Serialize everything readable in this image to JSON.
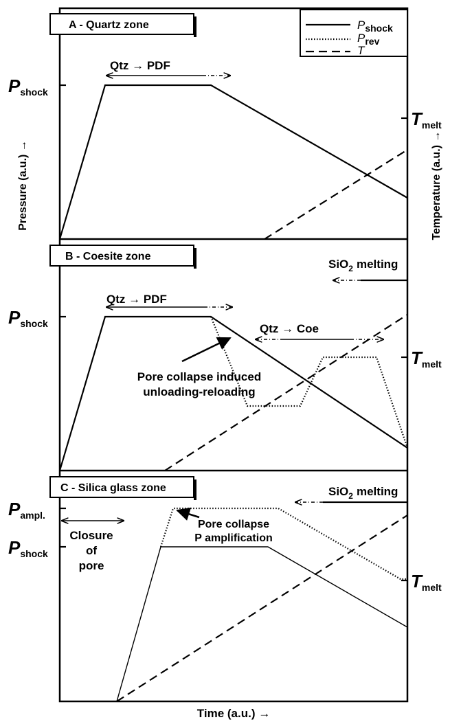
{
  "panels": [
    {
      "label": "A - Quartz zone",
      "p_shock": {
        "main": "P",
        "sub": "shock"
      },
      "t_melt": {
        "main": "T",
        "sub": "melt"
      },
      "annotations": [
        "Qtz → PDF"
      ]
    },
    {
      "label": "B - Coesite zone",
      "p_shock": {
        "main": "P",
        "sub": "shock"
      },
      "t_melt": {
        "main": "T",
        "sub": "melt"
      },
      "melting": {
        "main": "SiO",
        "sub": "2",
        "rest": "melting"
      },
      "annotations": [
        "Qtz → PDF",
        "Qtz → Coe"
      ],
      "note": [
        "Pore collapse induced",
        "unloading-reloading"
      ]
    },
    {
      "label": "C - Silica glass zone",
      "p_ampl": {
        "main": "P",
        "sub": "ampl."
      },
      "p_shock": {
        "main": "P",
        "sub": "shock"
      },
      "t_melt": {
        "main": "T",
        "sub": "melt"
      },
      "melting": {
        "main": "SiO",
        "sub": "2",
        "rest": "melting"
      },
      "closure": [
        "Closure",
        "of",
        "pore"
      ],
      "note": [
        "Pore collapse",
        "P amplification"
      ]
    }
  ],
  "legend": [
    {
      "main": "P",
      "sub": "shock"
    },
    {
      "main": "P",
      "sub": "rev"
    },
    {
      "main": "T"
    }
  ],
  "axes": {
    "y_left": "Pressure (a.u.) →",
    "y_right": "Temperature (a.u.) →",
    "x": "Time (a.u.) →"
  }
}
